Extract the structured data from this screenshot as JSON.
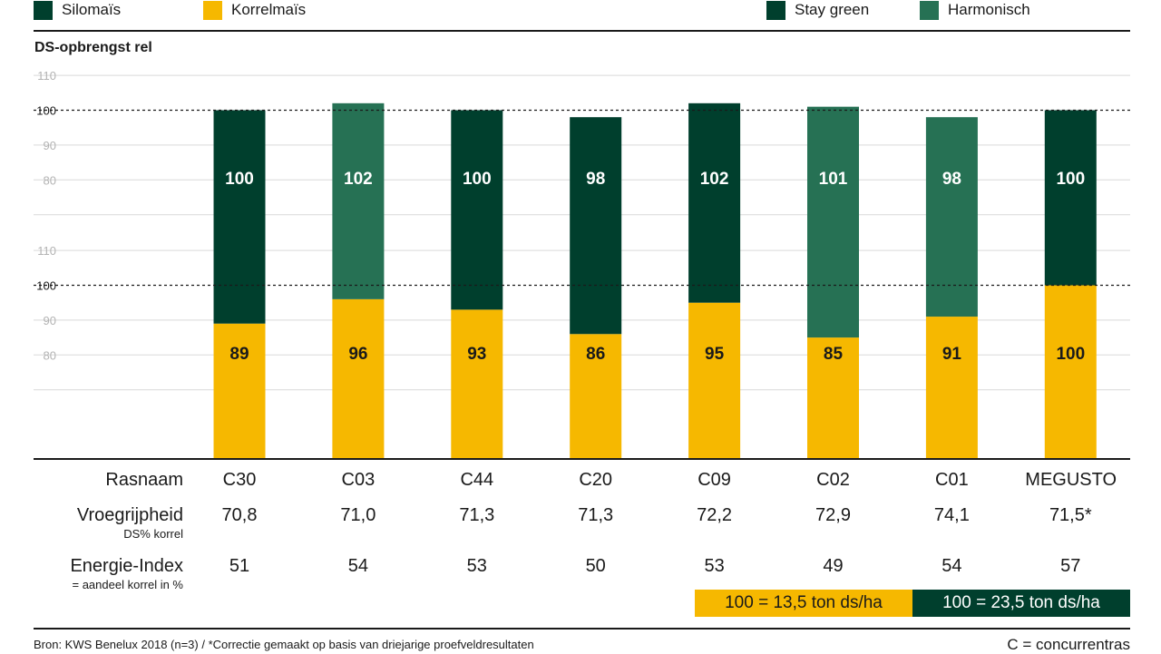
{
  "legend": {
    "silomais": {
      "label": "Silomaïs",
      "color": "#003f2d"
    },
    "korrelmais": {
      "label": "Korrelmaïs",
      "color": "#f6b800"
    },
    "stay_green": {
      "label": "Stay green",
      "color": "#003f2d"
    },
    "harmonisch": {
      "label": "Harmonisch",
      "color": "#267154"
    }
  },
  "chart_data": {
    "type": "bar",
    "title": "DS-opbrengst rel",
    "categories": [
      "C30",
      "C03",
      "C44",
      "C20",
      "C09",
      "C02",
      "C01",
      "MEGUSTO"
    ],
    "series": [
      {
        "name": "Silomaïs",
        "values": [
          100,
          102,
          100,
          98,
          102,
          101,
          98,
          100
        ],
        "types": [
          "Stay green",
          "Harmonisch",
          "Stay green",
          "Stay green",
          "Stay green",
          "Harmonisch",
          "Harmonisch",
          "Stay green"
        ],
        "basis": "100 = 23,5 ton ds/ha"
      },
      {
        "name": "Korrelmaïs",
        "values": [
          89,
          96,
          93,
          86,
          95,
          85,
          91,
          100
        ],
        "basis": "100 = 13,5 ton ds/ha"
      }
    ],
    "silo_axis": {
      "ticks": [
        "110",
        "100",
        "90",
        "80"
      ],
      "ylim": [
        70,
        110
      ]
    },
    "korrel_axis": {
      "ticks": [
        "110",
        "100",
        "90",
        "80"
      ],
      "ylim": [
        70,
        110
      ]
    },
    "reference_line": 100
  },
  "table": {
    "rasnaam_label": "Rasnaam",
    "vroeg_label": "Vroegrijpheid",
    "vroeg_sub": "DS% korrel",
    "energie_label": "Energie-Index",
    "energie_sub": "= aandeel korrel in %",
    "rasnaam": [
      "C30",
      "C03",
      "C44",
      "C20",
      "C09",
      "C02",
      "C01",
      "MEGUSTO"
    ],
    "vroegrijpheid": [
      "70,8",
      "71,0",
      "71,3",
      "71,3",
      "72,2",
      "72,9",
      "74,1",
      "71,5*"
    ],
    "energie_index": [
      "51",
      "54",
      "53",
      "50",
      "53",
      "49",
      "54",
      "57"
    ]
  },
  "basis": {
    "korrel": "100 = 13,5 ton ds/ha",
    "silo": "100 = 23,5 ton ds/ha"
  },
  "footer": {
    "source": "Bron: KWS Benelux 2018 (n=3) / *Correctie gemaakt op basis van driejarige proefveldresultaten",
    "note": "C = concurrentras"
  }
}
